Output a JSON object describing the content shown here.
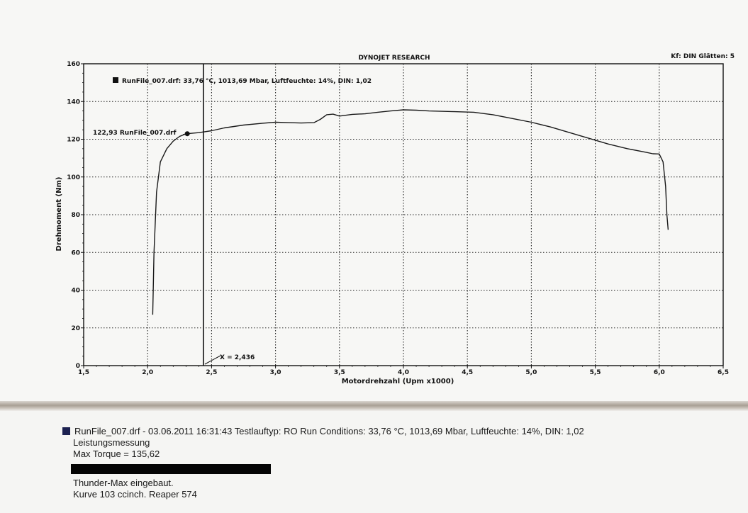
{
  "chart_data": {
    "type": "line",
    "title": "DYNOJET RESEARCH",
    "header_right": "Kf: DIN  Glätten: 5",
    "xlabel": "Motordrehzahl (Upm x1000)",
    "ylabel": "Drehmoment (Nm)",
    "xlim": [
      1.5,
      6.5
    ],
    "ylim": [
      0,
      160
    ],
    "x_ticks": [
      1.5,
      2.0,
      2.5,
      3.0,
      3.5,
      4.0,
      4.5,
      5.0,
      5.5,
      6.0,
      6.5
    ],
    "x_tick_labels": [
      "1,5",
      "2,0",
      "2,5",
      "3,0",
      "3,5",
      "4,0",
      "4,5",
      "5,0",
      "5,5",
      "6,0",
      "6,5"
    ],
    "y_ticks": [
      0,
      20,
      40,
      60,
      80,
      100,
      120,
      140,
      160
    ],
    "y_tick_labels": [
      "0",
      "20",
      "40",
      "60",
      "80",
      "100",
      "120",
      "140",
      "160"
    ],
    "grid": true,
    "legend": "RunFile_007.drf: 33,76 °C, 1013,69 Mbar, Luftfeuchte: 14%, DIN: 1,02",
    "series": [
      {
        "name": "RunFile_007.drf",
        "color": "#1a1a1a",
        "x": [
          2.04,
          2.05,
          2.07,
          2.1,
          2.15,
          2.2,
          2.25,
          2.3,
          2.4,
          2.5,
          2.6,
          2.75,
          2.9,
          3.0,
          3.1,
          3.2,
          3.3,
          3.35,
          3.4,
          3.45,
          3.5,
          3.6,
          3.7,
          3.8,
          3.9,
          4.0,
          4.1,
          4.2,
          4.4,
          4.55,
          4.7,
          4.85,
          5.0,
          5.15,
          5.3,
          5.45,
          5.6,
          5.75,
          5.9,
          5.95,
          6.0,
          6.03,
          6.05,
          6.06,
          6.07
        ],
        "y": [
          27,
          60,
          92,
          108,
          115,
          119,
          121.5,
          122.9,
          123.5,
          124.5,
          126,
          127.5,
          128.5,
          129,
          128.8,
          128.6,
          128.8,
          130.5,
          133,
          133.3,
          132.3,
          133.2,
          133.5,
          134.3,
          135,
          135.6,
          135.4,
          135,
          134.6,
          134.3,
          133,
          131,
          129,
          126.5,
          123.5,
          120.5,
          117.5,
          115,
          113,
          112.3,
          112.2,
          108,
          95,
          80,
          72
        ]
      }
    ],
    "annotations": [
      {
        "label": "122,93 RunFile_007.drf",
        "x": 2.31,
        "y": 122.93
      },
      {
        "label": "X = 2,436",
        "x": 2.436,
        "y": 0
      }
    ],
    "cursor_x": 2.436
  },
  "report": {
    "line1": "RunFile_007.drf - 03.06.2011 16:31:43  Testlauftyp: RO  Run Conditions: 33,76 °C, 1013,69 Mbar,  Luftfeuchte: 14%, DIN: 1,02",
    "line2": "Leistungsmessung",
    "line3": "Max Torque = 135,62",
    "line4": "Thunder-Max eingebaut.",
    "line5": "Kurve 103 ccinch. Reaper 574",
    "swatch_color": "#1c2150"
  }
}
